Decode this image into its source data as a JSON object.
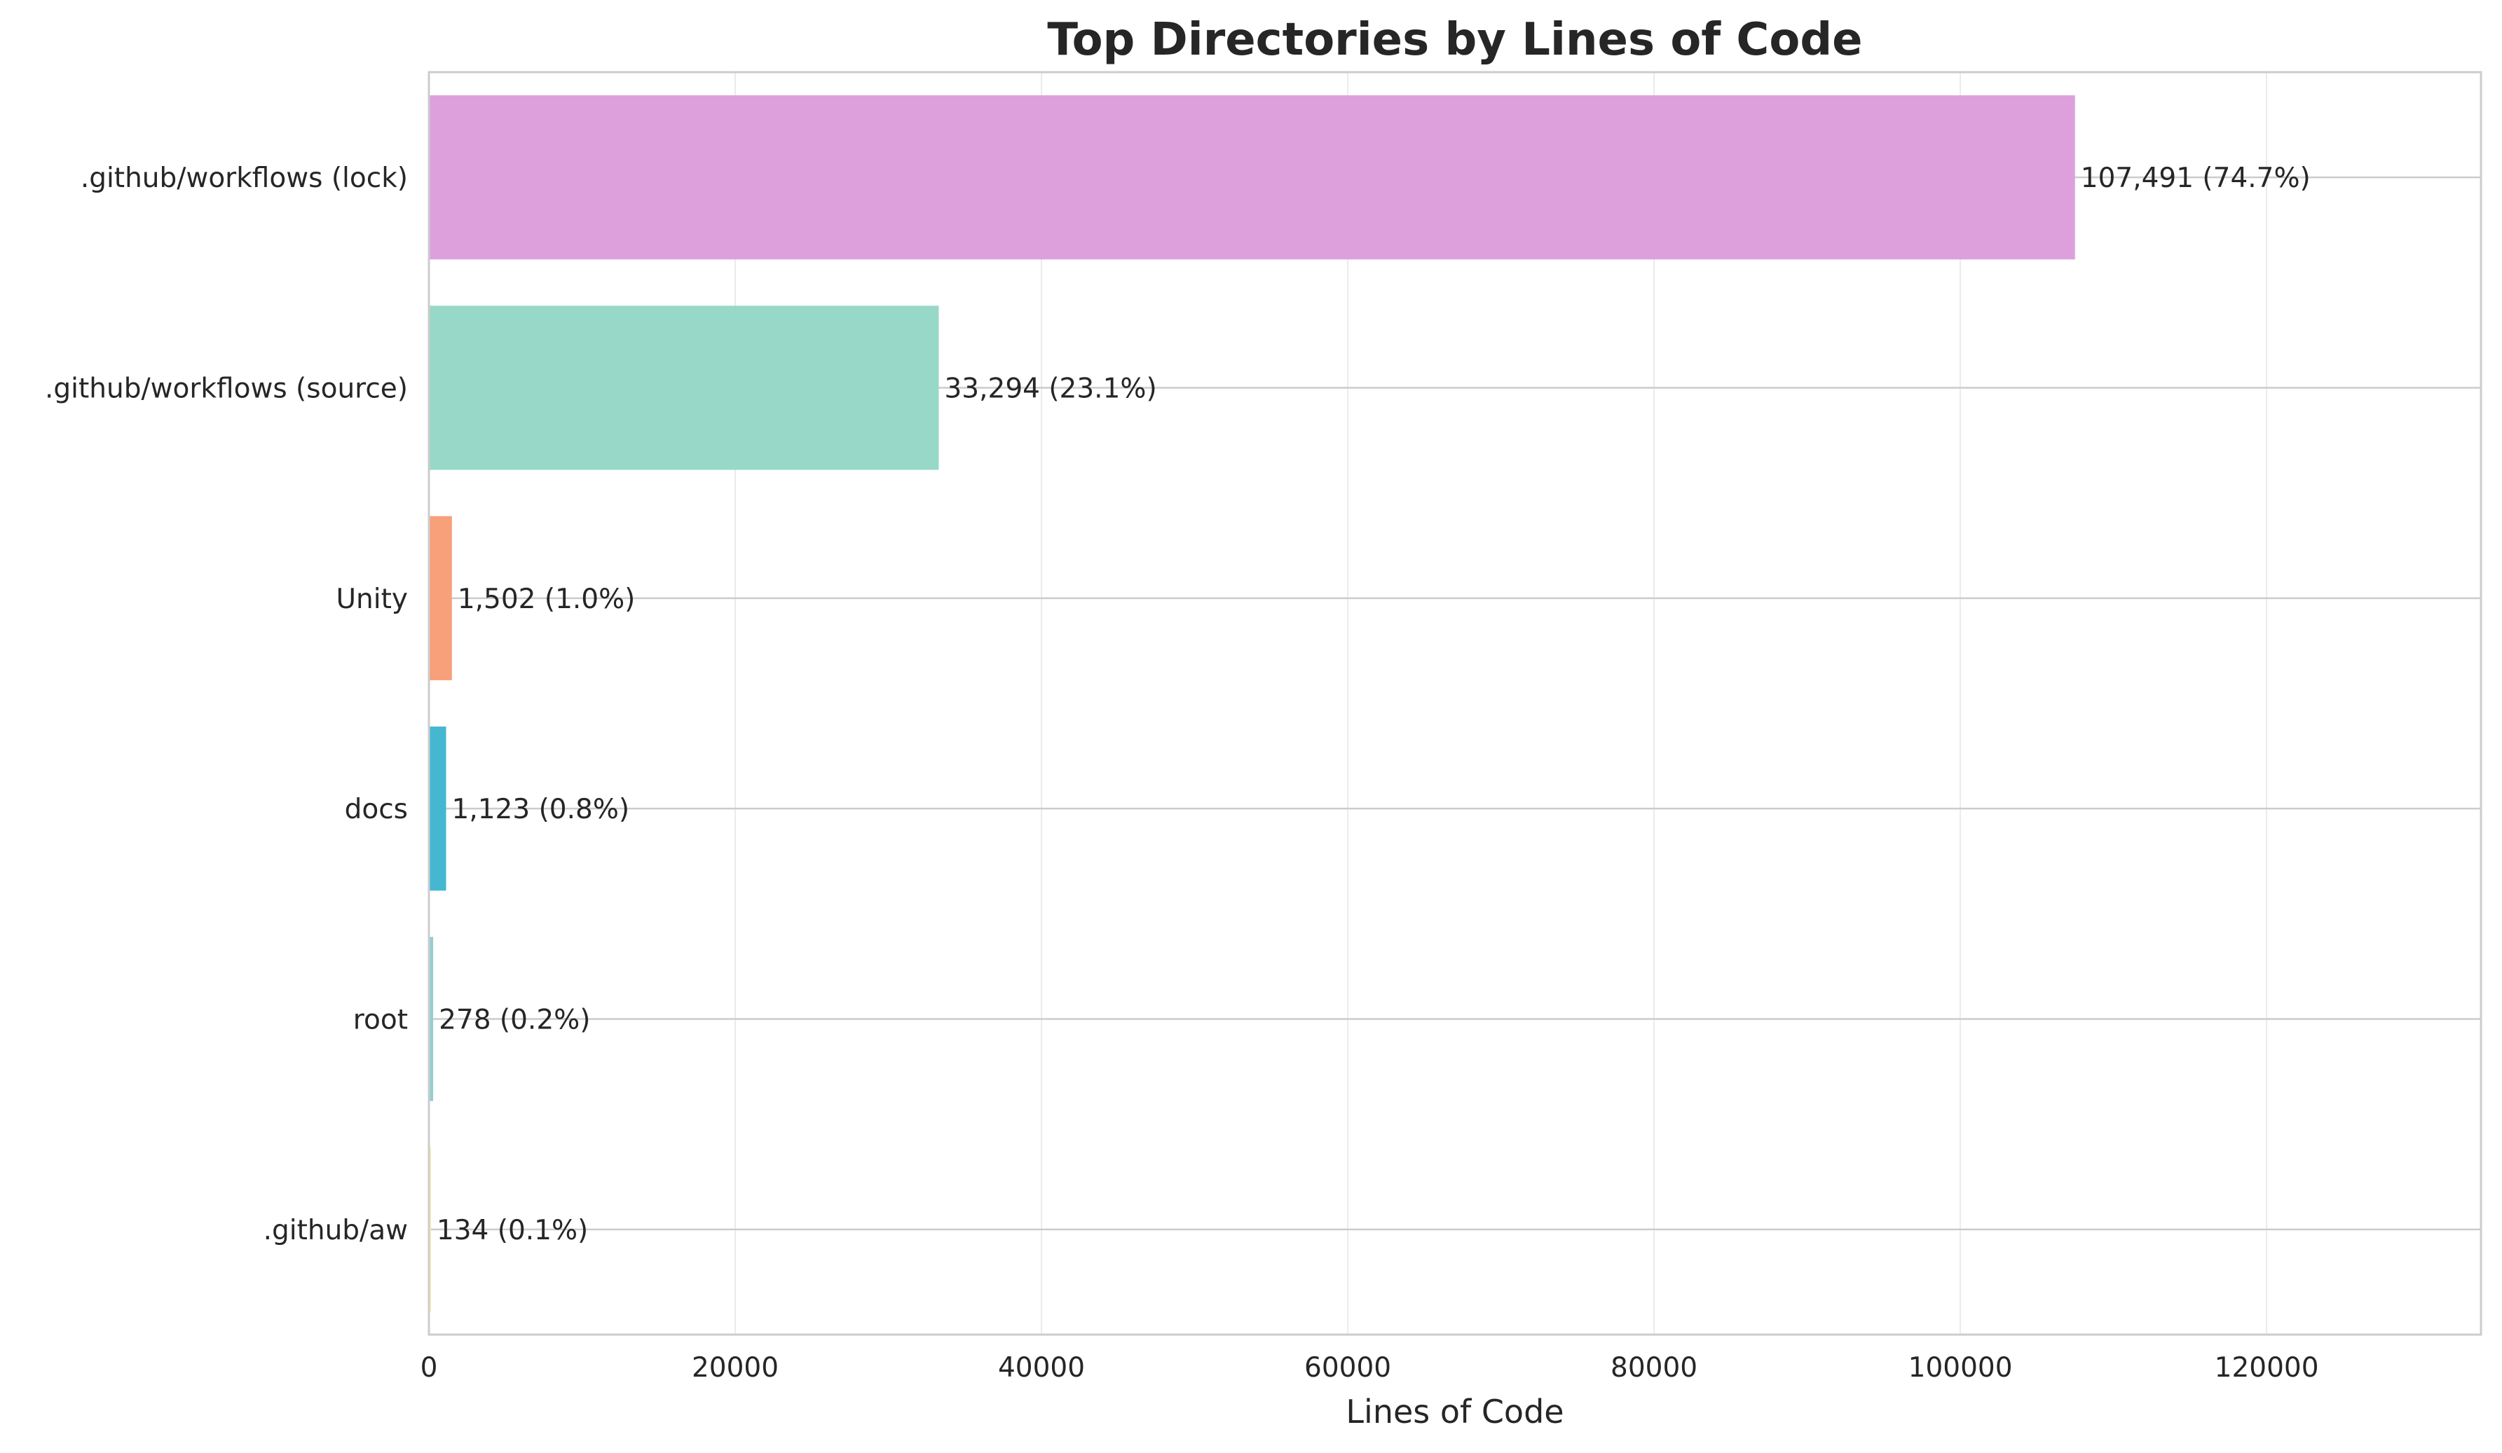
{
  "chart_data": {
    "type": "bar",
    "orientation": "horizontal",
    "title": "Top Directories by Lines of Code",
    "xlabel": "Lines of Code",
    "ylabel": "",
    "xlim": [
      0,
      134000
    ],
    "xticks": [
      0,
      20000,
      40000,
      60000,
      80000,
      100000,
      120000
    ],
    "grid": true,
    "categories": [
      ".github/workflows (lock)",
      ".github/workflows (source)",
      "Unity",
      "docs",
      "root",
      ".github/aw"
    ],
    "values": [
      107491,
      33294,
      1502,
      1123,
      278,
      134
    ],
    "data_labels": [
      "107,491 (74.7%)",
      "33,294 (23.1%)",
      "1,502 (1.0%)",
      "1,123 (0.8%)",
      "278 (0.2%)",
      "134 (0.1%)"
    ],
    "colors": [
      "#dda0dd",
      "#98d8c8",
      "#f7a07a",
      "#45b7d1",
      "#96ced1",
      "#ffeaa7"
    ]
  }
}
